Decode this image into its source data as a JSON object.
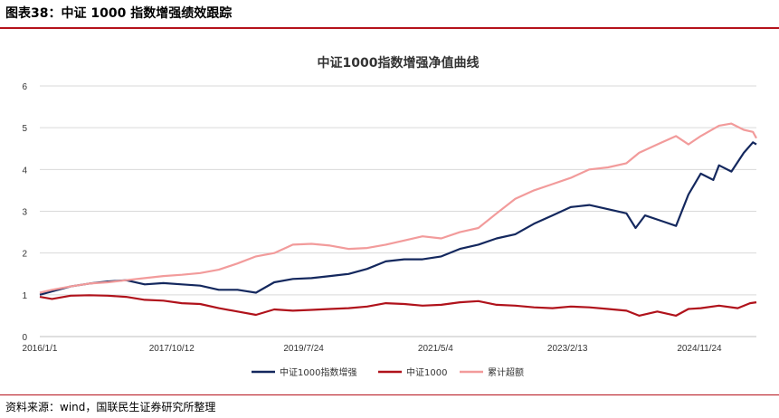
{
  "figure": {
    "title": "图表38：中证 1000 指数增强绩效跟踪",
    "source": "资料来源：wind，国联民生证券研究所整理"
  },
  "chart_data": {
    "type": "line",
    "title": "中证1000指数增强净值曲线",
    "xlabel": "",
    "ylabel": "",
    "ylim": [
      0,
      6
    ],
    "yticks": [
      "0",
      "1",
      "2",
      "3",
      "4",
      "5",
      "6"
    ],
    "xticks": [
      {
        "date": "2016-01-01",
        "label": "2016/1/1"
      },
      {
        "date": "2017-10-12",
        "label": "2017/10/12"
      },
      {
        "date": "2019-07-24",
        "label": "2019/7/24"
      },
      {
        "date": "2021-05-04",
        "label": "2021/5/4"
      },
      {
        "date": "2023-02-13",
        "label": "2023/2/13"
      },
      {
        "date": "2024-11-24",
        "label": "2024/11/24"
      }
    ],
    "xlim": [
      "2016-01-01",
      "2025-09-01"
    ],
    "grid": "horizontal",
    "legend": "bottom",
    "series": [
      {
        "name": "中证1000指数增强",
        "color": "#14285e",
        "points": [
          [
            "2016-01-01",
            1.0
          ],
          [
            "2016-03-01",
            1.08
          ],
          [
            "2016-06-01",
            1.2
          ],
          [
            "2016-09-01",
            1.27
          ],
          [
            "2016-12-01",
            1.32
          ],
          [
            "2017-03-01",
            1.35
          ],
          [
            "2017-06-01",
            1.25
          ],
          [
            "2017-09-01",
            1.28
          ],
          [
            "2017-12-01",
            1.25
          ],
          [
            "2018-03-01",
            1.22
          ],
          [
            "2018-06-01",
            1.12
          ],
          [
            "2018-09-01",
            1.12
          ],
          [
            "2018-12-01",
            1.05
          ],
          [
            "2019-03-01",
            1.3
          ],
          [
            "2019-06-01",
            1.38
          ],
          [
            "2019-09-01",
            1.4
          ],
          [
            "2019-12-01",
            1.45
          ],
          [
            "2020-03-01",
            1.5
          ],
          [
            "2020-06-01",
            1.62
          ],
          [
            "2020-09-01",
            1.8
          ],
          [
            "2020-12-01",
            1.85
          ],
          [
            "2021-03-01",
            1.85
          ],
          [
            "2021-06-01",
            1.92
          ],
          [
            "2021-09-01",
            2.1
          ],
          [
            "2021-12-01",
            2.2
          ],
          [
            "2022-03-01",
            2.35
          ],
          [
            "2022-06-01",
            2.45
          ],
          [
            "2022-09-01",
            2.7
          ],
          [
            "2022-12-01",
            2.9
          ],
          [
            "2023-03-01",
            3.1
          ],
          [
            "2023-06-01",
            3.15
          ],
          [
            "2023-09-01",
            3.05
          ],
          [
            "2023-12-01",
            2.95
          ],
          [
            "2024-01-15",
            2.6
          ],
          [
            "2024-03-01",
            2.9
          ],
          [
            "2024-06-01",
            2.75
          ],
          [
            "2024-08-01",
            2.65
          ],
          [
            "2024-10-01",
            3.4
          ],
          [
            "2024-12-01",
            3.9
          ],
          [
            "2025-02-01",
            3.75
          ],
          [
            "2025-03-01",
            4.1
          ],
          [
            "2025-05-01",
            3.95
          ],
          [
            "2025-07-01",
            4.4
          ],
          [
            "2025-08-15",
            4.65
          ],
          [
            "2025-09-01",
            4.6
          ]
        ]
      },
      {
        "name": "中证1000",
        "color": "#b0121b",
        "points": [
          [
            "2016-01-01",
            0.95
          ],
          [
            "2016-03-01",
            0.9
          ],
          [
            "2016-06-01",
            0.98
          ],
          [
            "2016-09-01",
            0.99
          ],
          [
            "2016-12-01",
            0.98
          ],
          [
            "2017-03-01",
            0.95
          ],
          [
            "2017-06-01",
            0.88
          ],
          [
            "2017-09-01",
            0.86
          ],
          [
            "2017-12-01",
            0.8
          ],
          [
            "2018-03-01",
            0.78
          ],
          [
            "2018-06-01",
            0.68
          ],
          [
            "2018-09-01",
            0.6
          ],
          [
            "2018-12-01",
            0.52
          ],
          [
            "2019-03-01",
            0.65
          ],
          [
            "2019-06-01",
            0.62
          ],
          [
            "2019-09-01",
            0.64
          ],
          [
            "2019-12-01",
            0.66
          ],
          [
            "2020-03-01",
            0.68
          ],
          [
            "2020-06-01",
            0.72
          ],
          [
            "2020-09-01",
            0.8
          ],
          [
            "2020-12-01",
            0.78
          ],
          [
            "2021-03-01",
            0.74
          ],
          [
            "2021-06-01",
            0.76
          ],
          [
            "2021-09-01",
            0.82
          ],
          [
            "2021-12-01",
            0.85
          ],
          [
            "2022-03-01",
            0.76
          ],
          [
            "2022-06-01",
            0.74
          ],
          [
            "2022-09-01",
            0.7
          ],
          [
            "2022-12-01",
            0.68
          ],
          [
            "2023-03-01",
            0.72
          ],
          [
            "2023-06-01",
            0.7
          ],
          [
            "2023-09-01",
            0.66
          ],
          [
            "2023-12-01",
            0.62
          ],
          [
            "2024-02-01",
            0.5
          ],
          [
            "2024-05-01",
            0.6
          ],
          [
            "2024-08-01",
            0.5
          ],
          [
            "2024-10-01",
            0.66
          ],
          [
            "2024-12-01",
            0.68
          ],
          [
            "2025-03-01",
            0.74
          ],
          [
            "2025-06-01",
            0.68
          ],
          [
            "2025-08-01",
            0.8
          ],
          [
            "2025-09-01",
            0.82
          ]
        ]
      },
      {
        "name": "累计超额",
        "color": "#f29b9b",
        "points": [
          [
            "2016-01-01",
            1.05
          ],
          [
            "2016-03-01",
            1.12
          ],
          [
            "2016-06-01",
            1.2
          ],
          [
            "2016-09-01",
            1.27
          ],
          [
            "2016-12-01",
            1.3
          ],
          [
            "2017-03-01",
            1.35
          ],
          [
            "2017-06-01",
            1.4
          ],
          [
            "2017-09-01",
            1.45
          ],
          [
            "2017-12-01",
            1.48
          ],
          [
            "2018-03-01",
            1.52
          ],
          [
            "2018-06-01",
            1.6
          ],
          [
            "2018-09-01",
            1.75
          ],
          [
            "2018-12-01",
            1.92
          ],
          [
            "2019-03-01",
            2.0
          ],
          [
            "2019-06-01",
            2.2
          ],
          [
            "2019-09-01",
            2.22
          ],
          [
            "2019-12-01",
            2.18
          ],
          [
            "2020-03-01",
            2.1
          ],
          [
            "2020-06-01",
            2.12
          ],
          [
            "2020-09-01",
            2.2
          ],
          [
            "2020-12-01",
            2.3
          ],
          [
            "2021-03-01",
            2.4
          ],
          [
            "2021-06-01",
            2.35
          ],
          [
            "2021-09-01",
            2.5
          ],
          [
            "2021-12-01",
            2.6
          ],
          [
            "2022-03-01",
            2.95
          ],
          [
            "2022-06-01",
            3.3
          ],
          [
            "2022-09-01",
            3.5
          ],
          [
            "2022-12-01",
            3.65
          ],
          [
            "2023-03-01",
            3.8
          ],
          [
            "2023-06-01",
            4.0
          ],
          [
            "2023-09-01",
            4.05
          ],
          [
            "2023-12-01",
            4.15
          ],
          [
            "2024-02-01",
            4.4
          ],
          [
            "2024-05-01",
            4.6
          ],
          [
            "2024-08-01",
            4.8
          ],
          [
            "2024-10-01",
            4.6
          ],
          [
            "2024-12-01",
            4.8
          ],
          [
            "2025-03-01",
            5.05
          ],
          [
            "2025-05-01",
            5.1
          ],
          [
            "2025-07-01",
            4.95
          ],
          [
            "2025-08-15",
            4.9
          ],
          [
            "2025-09-01",
            4.75
          ]
        ]
      }
    ]
  }
}
